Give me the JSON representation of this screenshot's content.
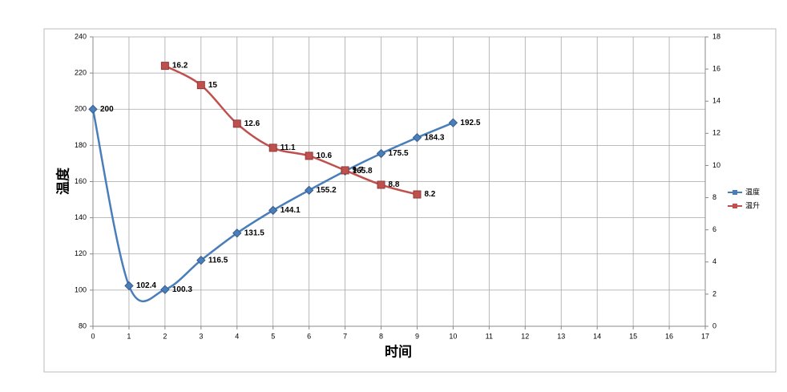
{
  "chart_data": {
    "type": "line",
    "x": [
      0,
      1,
      2,
      3,
      4,
      5,
      6,
      7,
      8,
      9,
      10
    ],
    "series": [
      {
        "name": "温度",
        "color": "#4a7ebb",
        "values": [
          200,
          102.4,
          100.3,
          116.5,
          131.5,
          144.1,
          155.2,
          165.8,
          175.5,
          184.3,
          192.5
        ]
      },
      {
        "name": "温升",
        "color": "#c0504d",
        "axis": "y2",
        "values": [
          null,
          null,
          16.2,
          15,
          12.6,
          11.1,
          10.6,
          9.7,
          8.8,
          8.2,
          null
        ]
      }
    ],
    "x_label": "时间",
    "y_label": "温度",
    "xlim": [
      0,
      17
    ],
    "xticks": [
      0,
      1,
      2,
      3,
      4,
      5,
      6,
      7,
      8,
      9,
      10,
      11,
      12,
      13,
      14,
      15,
      16,
      17
    ],
    "ylim": [
      80,
      240
    ],
    "yticks": [
      80,
      100,
      120,
      140,
      160,
      180,
      200,
      220,
      240
    ],
    "y2lim": [
      0,
      18
    ],
    "y2ticks": [
      0,
      2,
      4,
      6,
      8,
      10,
      12,
      14,
      16,
      18
    ],
    "grid": true,
    "smooth": true,
    "legend": "right"
  }
}
